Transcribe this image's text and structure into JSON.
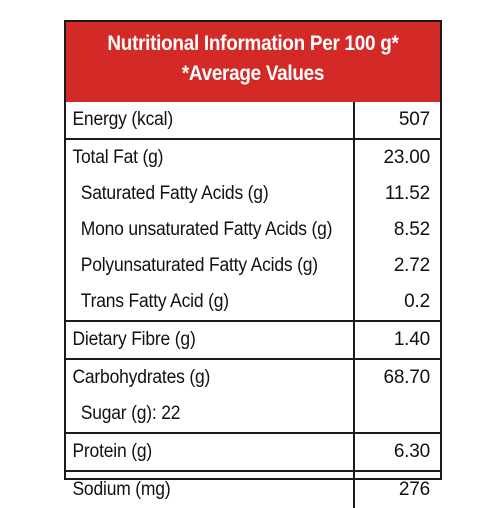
{
  "header": {
    "line1": "Nutritional Information Per 100 g*",
    "line2": "*Average Values"
  },
  "groups": [
    {
      "rows": [
        {
          "label": "Energy (kcal)",
          "value": "507"
        }
      ]
    },
    {
      "rows": [
        {
          "label": "Total Fat (g)",
          "value": "23.00"
        },
        {
          "label": "Saturated Fatty Acids (g)",
          "value": "11.52"
        },
        {
          "label": "Mono unsaturated Fatty Acids (g)",
          "value": "8.52"
        },
        {
          "label": "Polyunsaturated Fatty Acids (g)",
          "value": "2.72"
        },
        {
          "label": "Trans Fatty Acid (g)",
          "value": "0.2"
        }
      ]
    },
    {
      "rows": [
        {
          "label": "Dietary Fibre (g)",
          "value": "1.40"
        }
      ]
    },
    {
      "rows": [
        {
          "label": "Carbohydrates  (g)",
          "value": "68.70"
        },
        {
          "label": "Sugar (g): 22",
          "value": ""
        }
      ]
    },
    {
      "rows": [
        {
          "label": "Protein (g)",
          "value": "6.30"
        }
      ]
    },
    {
      "rows": [
        {
          "label": "Sodium (mg)",
          "value": "276"
        }
      ]
    }
  ]
}
